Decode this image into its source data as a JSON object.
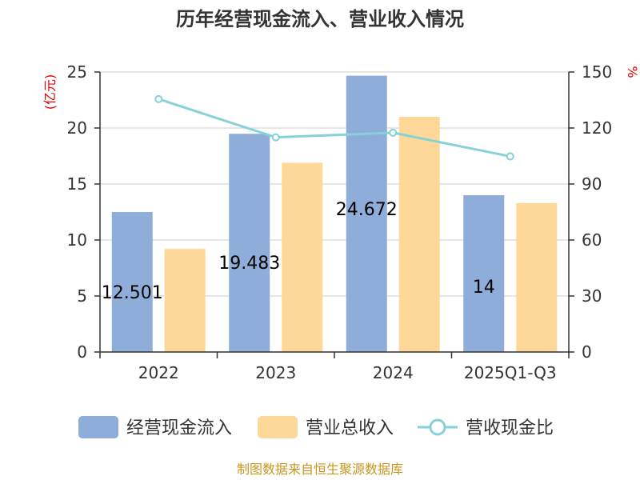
{
  "chart_data": {
    "type": "bar",
    "title": "历年经营现金流入、营业收入情况",
    "categories": [
      "2022",
      "2023",
      "2024",
      "2025Q1-Q3"
    ],
    "y_left": {
      "unit": "(亿元)",
      "ticks": [
        "0",
        "5",
        "10",
        "15",
        "20",
        "25"
      ],
      "range": [
        0,
        25
      ]
    },
    "y_right": {
      "unit": "%",
      "ticks": [
        "0",
        "30",
        "60",
        "90",
        "120",
        "150"
      ],
      "range": [
        0,
        150
      ]
    },
    "series": [
      {
        "name": "经营现金流入",
        "kind": "bar",
        "axis": "left",
        "color": "#8eadd9",
        "values": [
          12.501,
          19.483,
          24.672,
          14.0
        ],
        "data_labels": [
          "12.501",
          "19.483",
          "24.672",
          "14"
        ]
      },
      {
        "name": "营业总收入",
        "kind": "bar",
        "axis": "left",
        "color": "#fdd899",
        "values": [
          9.2,
          16.9,
          21.0,
          13.3
        ]
      },
      {
        "name": "营收现金比",
        "kind": "line",
        "axis": "right",
        "color": "#86d2d8",
        "values": [
          135.5,
          115.0,
          117.5,
          104.8
        ]
      }
    ],
    "grid": true,
    "legend_position": "bottom"
  },
  "source_text": "制图数据来自恒生聚源数据库"
}
